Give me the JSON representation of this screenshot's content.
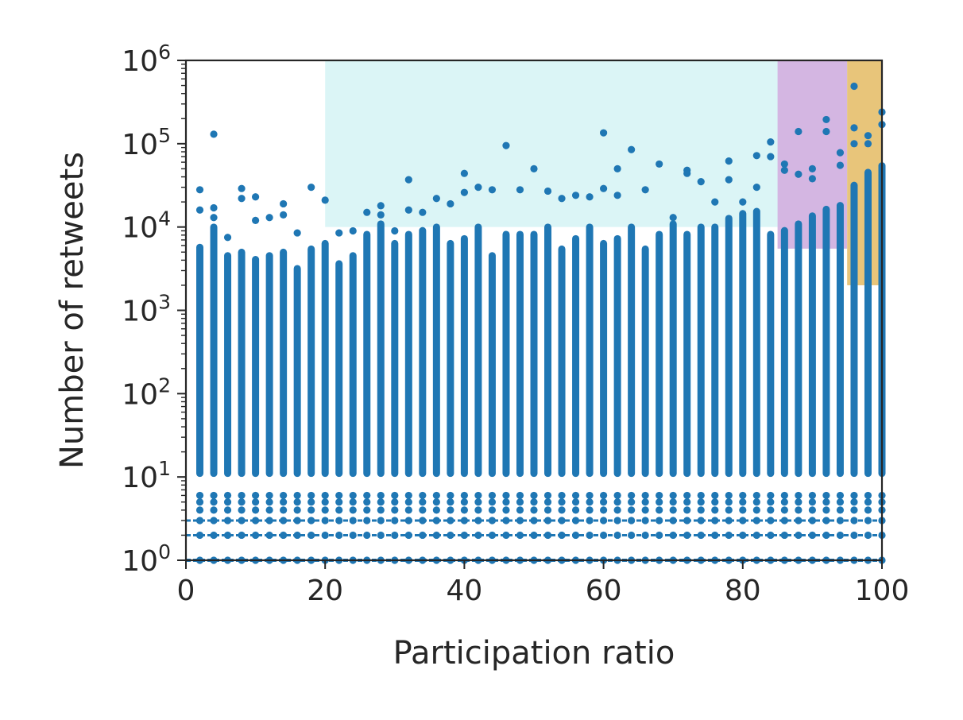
{
  "chart_data": {
    "type": "scatter",
    "title": "",
    "xlabel": "Participation ratio",
    "ylabel": "Number of retweets",
    "xlim": [
      0,
      100
    ],
    "ylim": [
      1,
      1000000
    ],
    "yscale": "log",
    "grid": false,
    "xticks": [
      0,
      20,
      40,
      60,
      80,
      100
    ],
    "xtick_labels": [
      "0",
      "20",
      "40",
      "60",
      "80",
      "100"
    ],
    "yticks": [
      1,
      10,
      100,
      1000,
      10000,
      100000,
      1000000
    ],
    "ytick_labels": [
      {
        "base": "10",
        "exp": "0"
      },
      {
        "base": "10",
        "exp": "1"
      },
      {
        "base": "10",
        "exp": "2"
      },
      {
        "base": "10",
        "exp": "3"
      },
      {
        "base": "10",
        "exp": "4"
      },
      {
        "base": "10",
        "exp": "5"
      },
      {
        "base": "10",
        "exp": "6"
      }
    ],
    "regions": [
      {
        "x": [
          20,
          100
        ],
        "y": [
          10000,
          1000000
        ],
        "color": "#dbf5f6"
      },
      {
        "x": [
          85,
          95
        ],
        "y": [
          5500,
          1000000
        ],
        "color": "#d4b6e2"
      },
      {
        "x": [
          95,
          100
        ],
        "y": [
          2000,
          1000000
        ],
        "color": "#e8c57a"
      }
    ],
    "marker_color": "#1f77b4",
    "series": [
      {
        "x": [
          2,
          4,
          6,
          8,
          10,
          12,
          14,
          16,
          18,
          20,
          22,
          24,
          26,
          28,
          30,
          32,
          34,
          36,
          38,
          40,
          42,
          44,
          46,
          48,
          50,
          52,
          54,
          56,
          58,
          60,
          62,
          64,
          66,
          68,
          70,
          72,
          74,
          76,
          78,
          80,
          82,
          84,
          86,
          88,
          90,
          92,
          94,
          96,
          98,
          100
        ],
        "y_min": [
          1,
          1,
          1,
          1,
          1,
          1,
          1,
          1,
          1,
          1,
          1,
          1,
          1,
          1,
          1,
          1,
          1,
          1,
          1,
          1,
          1,
          1,
          1,
          1,
          1,
          1,
          1,
          1,
          1,
          1,
          1,
          1,
          1,
          1,
          1,
          1,
          1,
          1,
          1,
          1,
          1,
          1,
          1,
          1,
          1,
          1,
          1,
          1,
          1,
          1
        ],
        "y_dense_top": [
          6300,
          11000,
          5000,
          5500,
          4500,
          5000,
          5500,
          3500,
          6000,
          7000,
          4000,
          5000,
          9000,
          12000,
          7000,
          9000,
          10000,
          11000,
          7000,
          8000,
          11000,
          5000,
          9000,
          9000,
          9000,
          11000,
          6000,
          8000,
          11000,
          7000,
          8000,
          11000,
          6000,
          9000,
          12000,
          9000,
          11000,
          11000,
          14000,
          16000,
          17000,
          9000,
          10000,
          12000,
          15000,
          18000,
          20000,
          35000,
          50000,
          60000
        ],
        "y_outliers": [
          [
            28000,
            16000
          ],
          [
            130000,
            17000,
            13000
          ],
          [
            7500
          ],
          [
            29000,
            22000
          ],
          [
            23000,
            12000
          ],
          [
            13000
          ],
          [
            19000,
            14000
          ],
          [
            8500
          ],
          [
            30000
          ],
          [
            21000
          ],
          [
            8500
          ],
          [
            9000
          ],
          [
            15000
          ],
          [
            18000,
            14000
          ],
          [
            9000
          ],
          [
            37000,
            16000
          ],
          [
            15000
          ],
          [
            22000
          ],
          [
            19000
          ],
          [
            44000,
            26000
          ],
          [
            30000
          ],
          [
            28000
          ],
          [
            95000
          ],
          [
            28000
          ],
          [
            50000
          ],
          [
            27000
          ],
          [
            22000
          ],
          [
            24000
          ],
          [
            23000
          ],
          [
            135000,
            29000
          ],
          [
            50000,
            24000
          ],
          [
            85000
          ],
          [
            28000
          ],
          [
            57000
          ],
          [
            13000
          ],
          [
            48000,
            44000
          ],
          [
            35000
          ],
          [
            20000
          ],
          [
            62000,
            37000
          ],
          [
            20000
          ],
          [
            72000,
            30000
          ],
          [
            105000,
            70000
          ],
          [
            57000,
            48000
          ],
          [
            140000,
            43000
          ],
          [
            50000,
            38000
          ],
          [
            195000,
            140000
          ],
          [
            78000,
            55000
          ],
          [
            490000,
            155000,
            100000
          ],
          [
            125000,
            100000
          ],
          [
            240000,
            170000
          ]
        ]
      }
    ]
  }
}
